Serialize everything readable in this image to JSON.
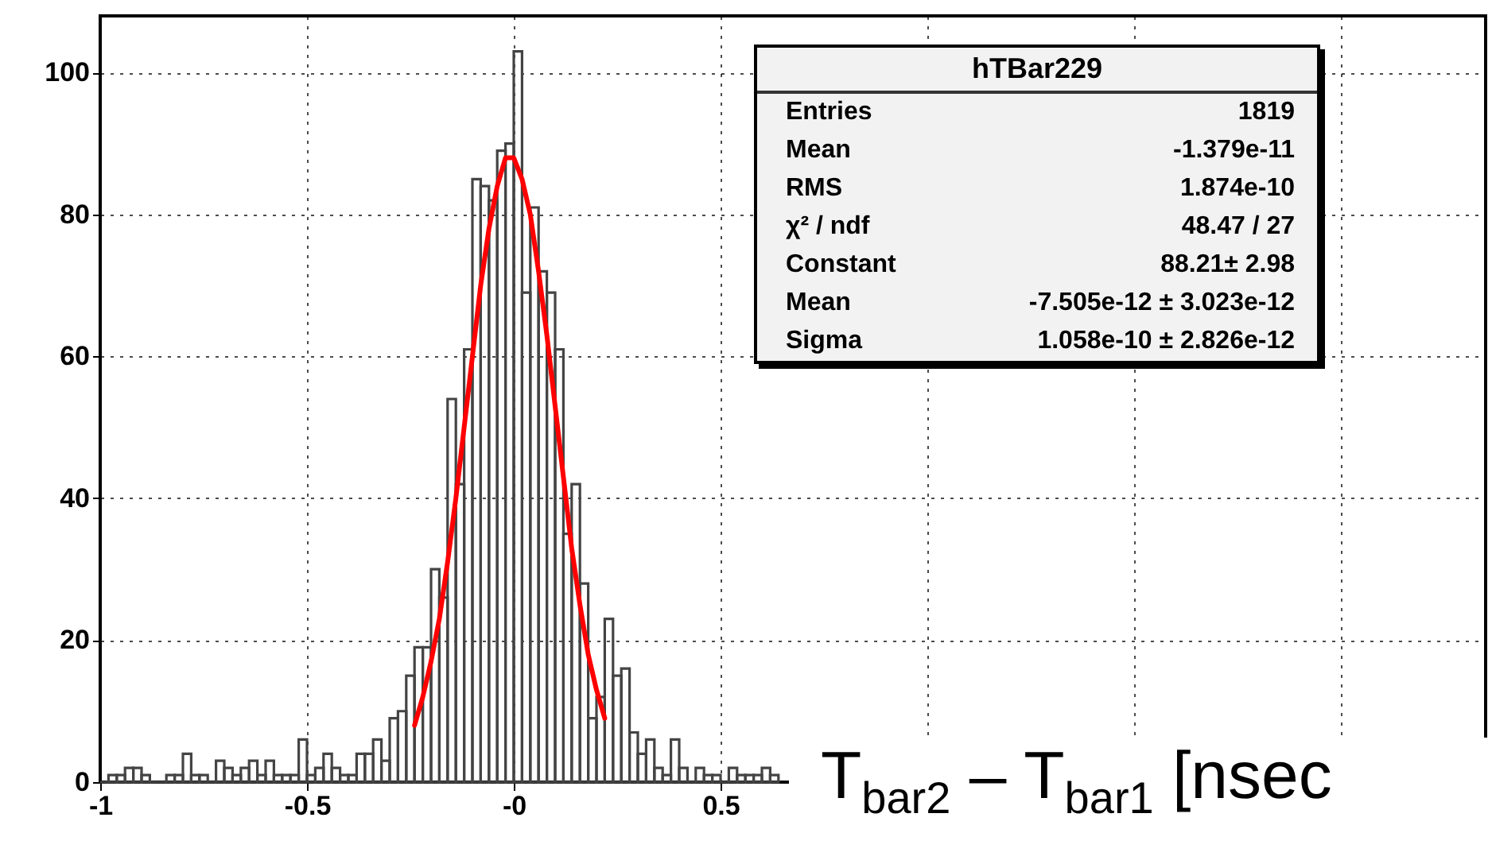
{
  "chart_data": {
    "type": "histogram",
    "title": "hTBar229",
    "xlabel": "T$_{bar2}$ – T$_{bar1}$ [nsec",
    "xlim": [
      -1,
      2.35
    ],
    "ylim": [
      0,
      108
    ],
    "xticks": [
      -1,
      -0.5,
      {
        "value": 0,
        "label": "-0"
      },
      0.5,
      {
        "value": 1,
        "label": null
      },
      {
        "value": 1.5,
        "label": null
      },
      {
        "value": 2,
        "label": null
      }
    ],
    "yticks": [
      0,
      20,
      40,
      60,
      80,
      100
    ],
    "grid": true,
    "series": [
      {
        "type": "histogram",
        "color": "#444444",
        "bins": [
          -1,
          -0.98,
          -0.96,
          -0.94,
          -0.92,
          -0.9,
          -0.88,
          -0.86,
          -0.84,
          -0.82,
          -0.8,
          -0.78,
          -0.76,
          -0.74,
          -0.72,
          -0.7,
          -0.68,
          -0.66,
          -0.64,
          -0.62,
          -0.6,
          -0.58,
          -0.56,
          -0.54,
          -0.52,
          -0.5,
          -0.48,
          -0.46,
          -0.44,
          -0.42,
          -0.4,
          -0.38,
          -0.36,
          -0.34,
          -0.32,
          -0.3,
          -0.28,
          -0.26,
          -0.24,
          -0.22,
          -0.2,
          -0.18,
          -0.16,
          -0.14,
          -0.12,
          -0.1,
          -0.08,
          -0.06,
          -0.04,
          -0.02,
          0,
          0.02,
          0.04,
          0.06,
          0.08,
          0.1,
          0.12,
          0.14,
          0.16,
          0.18,
          0.2,
          0.22,
          0.24,
          0.26,
          0.28,
          0.3,
          0.32,
          0.34,
          0.36,
          0.38,
          0.4,
          0.42,
          0.44,
          0.46,
          0.48,
          0.5,
          0.52,
          0.54,
          0.56,
          0.58,
          0.6,
          0.62,
          0.64
        ],
        "values": [
          0,
          1,
          1,
          2,
          2,
          1,
          0,
          0,
          1,
          1,
          4,
          1,
          1,
          0,
          3,
          2,
          1,
          2,
          3,
          1,
          3,
          1,
          1,
          1,
          6,
          1,
          2,
          4,
          2,
          1,
          1,
          4,
          4,
          6,
          3,
          9,
          10,
          15,
          19,
          19,
          30,
          26,
          54,
          42,
          61,
          85,
          84,
          82,
          89,
          90,
          103,
          69,
          81,
          72,
          69,
          61,
          35,
          42,
          28,
          9,
          12,
          23,
          15,
          16,
          7,
          4,
          6,
          2,
          1,
          6,
          2,
          0,
          2,
          1,
          1,
          0,
          2,
          1,
          1,
          1,
          2,
          1
        ]
      },
      {
        "type": "line",
        "color": "#ff0000",
        "x": [
          -0.24,
          -0.22,
          -0.2,
          -0.18,
          -0.16,
          -0.14,
          -0.12,
          -0.1,
          -0.08,
          -0.06,
          -0.04,
          -0.02,
          0,
          0.02,
          0.04,
          0.06,
          0.08,
          0.1,
          0.12,
          0.14,
          0.16,
          0.18,
          0.2,
          0.22
        ],
        "values": [
          8,
          12,
          17,
          23,
          31,
          40,
          50,
          60,
          70,
          78,
          84,
          88,
          88,
          85,
          80,
          72,
          63,
          53,
          43,
          33,
          25,
          18,
          13,
          9
        ]
      }
    ],
    "annotations": [
      "Entries  1819",
      "Mean  -1.379e-11",
      "RMS  1.874e-10",
      "χ² / ndf  48.47 / 27",
      "Constant  88.21± 2.98",
      "Mean  -7.505e-12 ± 3.023e-12",
      "Sigma  1.058e-10 ± 2.826e-12"
    ]
  }
}
